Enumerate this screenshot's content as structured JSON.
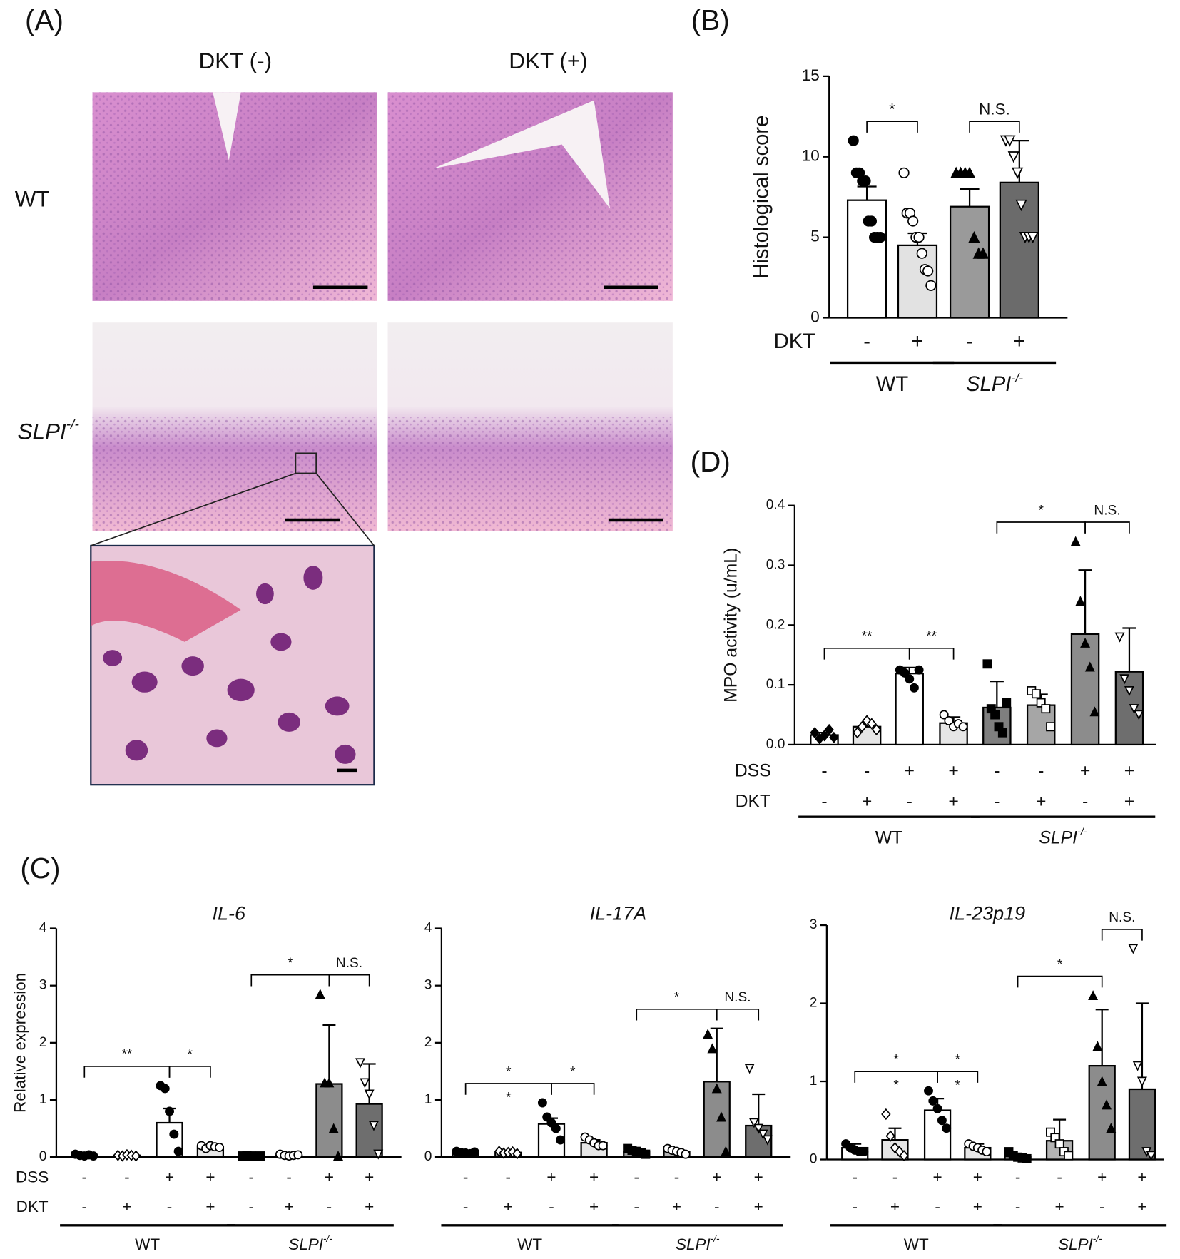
{
  "panel_a": {
    "label": "(A)",
    "columns": [
      "DKT (-)",
      "DKT (+)"
    ],
    "rows": [
      {
        "name": "WT"
      },
      {
        "name": "SLPI",
        "superscript": "-/-"
      }
    ]
  },
  "panel_c": {
    "label": "(C)"
  },
  "chart_data": [
    {
      "type": "bar",
      "panel_label": "(B)",
      "ylabel": "Histological score",
      "ylim": [
        0,
        15
      ],
      "yticks": [
        0,
        5,
        10,
        15
      ],
      "values": [
        7.3,
        4.5,
        6.9,
        8.4
      ],
      "errors": [
        0.85,
        0.75,
        1.1,
        2.6
      ],
      "colors": [
        "#ffffff",
        "#e2e2e2",
        "#9a9a9a",
        "#6b6b6b"
      ],
      "markers": [
        "circle-filled",
        "circle-open",
        "triangle-filled",
        "triangle-down-open"
      ],
      "points": [
        [
          11,
          9,
          9,
          8.5,
          8.5,
          6,
          6,
          5,
          5,
          5
        ],
        [
          9,
          6.5,
          6.5,
          6,
          5,
          5,
          4,
          3,
          2.9,
          2
        ],
        [
          9,
          9,
          9,
          9,
          5,
          4,
          4
        ],
        [
          11,
          11,
          10,
          9,
          7,
          5,
          5,
          5
        ]
      ],
      "conditions": [
        {
          "name": "DKT",
          "signs": [
            "-",
            "+",
            "-",
            "+"
          ]
        }
      ],
      "groups": [
        {
          "name": "WT"
        },
        {
          "name": "SLPI",
          "superscript": "-/-"
        }
      ],
      "significance": [
        {
          "from": 0,
          "to": 1,
          "label": "*"
        },
        {
          "from": 2,
          "to": 3,
          "label": "N.S."
        }
      ]
    },
    {
      "type": "bar",
      "panel_label": "(D)",
      "ylabel": "MPO activity (u/mL)",
      "ylim": [
        0,
        0.4
      ],
      "yticks": [
        {
          "value": 0,
          "label": "0.0"
        },
        0.1,
        0.2,
        0.3,
        0.4
      ],
      "values": [
        0.016,
        0.03,
        0.119,
        0.036,
        0.062,
        0.066,
        0.185,
        0.122
      ],
      "errors": [
        0.004,
        0.006,
        0.01,
        0.01,
        0.044,
        0.018,
        0.107,
        0.073
      ],
      "colors": [
        "#ffffff",
        "#e6e6e6",
        "#ffffff",
        "#e6e6e6",
        "#7f7f7f",
        "#a6a6a6",
        "#8c8c8c",
        "#6e6e6e"
      ],
      "markers": [
        "diamond-filled",
        "diamond-open",
        "circle-filled",
        "circle-open",
        "square-filled",
        "square-open",
        "triangle-filled",
        "triangle-down-open"
      ],
      "points": [
        [
          0.02,
          0.01,
          0.015,
          0.025,
          0.012
        ],
        [
          0.02,
          0.03,
          0.04,
          0.035,
          0.025
        ],
        [
          0.125,
          0.12,
          0.11,
          0.095,
          0.125
        ],
        [
          0.05,
          0.04,
          0.03,
          0.035,
          0.03
        ],
        [
          0.135,
          0.06,
          0.05,
          0.03,
          0.02,
          0.07
        ],
        [
          0.09,
          0.085,
          0.07,
          0.06,
          0.03
        ],
        [
          0.34,
          0.24,
          0.17,
          0.13,
          0.055
        ],
        [
          0.18,
          0.11,
          0.09,
          0.06,
          0.05
        ]
      ],
      "conditions": [
        {
          "name": "DSS",
          "signs": [
            "-",
            "-",
            "+",
            "+",
            "-",
            "-",
            "+",
            "+"
          ]
        },
        {
          "name": "DKT",
          "signs": [
            "-",
            "+",
            "-",
            "+",
            "-",
            "+",
            "-",
            "+"
          ]
        }
      ],
      "groups": [
        {
          "name": "WT"
        },
        {
          "name": "SLPI",
          "superscript": "-/-"
        }
      ],
      "significance": [
        {
          "from": 0,
          "to": 2,
          "label": "**"
        },
        {
          "from": 2,
          "to": 3,
          "label": "**"
        },
        {
          "from": 4,
          "to": 6,
          "label": "*"
        },
        {
          "from": 6,
          "to": 7,
          "label": "N.S."
        }
      ]
    },
    {
      "type": "bar",
      "title": "IL-6",
      "ylabel": "Relative expression",
      "ylim": [
        0,
        4
      ],
      "yticks": [
        0,
        1,
        2,
        3,
        4
      ],
      "values": [
        0.03,
        0.03,
        0.6,
        0.18,
        0.02,
        0.03,
        1.28,
        0.93
      ],
      "errors": [
        0.01,
        0.01,
        0.25,
        0.03,
        0.01,
        0.01,
        1.03,
        0.7
      ],
      "colors": [
        "#ffffff",
        "#e6e6e6",
        "#ffffff",
        "#e6e6e6",
        "#9a9a9a",
        "#b3b3b3",
        "#8c8c8c",
        "#6e6e6e"
      ],
      "markers": [
        "circle-filled",
        "diamond-open",
        "circle-filled",
        "circle-open",
        "square-filled",
        "circle-open",
        "triangle-filled",
        "triangle-down-open"
      ],
      "points": [
        [
          0.05,
          0.03,
          0.02,
          0.04,
          0.02
        ],
        [
          0.03,
          0.02,
          0.04,
          0.03,
          0.02
        ],
        [
          1.25,
          1.2,
          0.8,
          0.4,
          0.1
        ],
        [
          0.2,
          0.15,
          0.2,
          0.18,
          0.17
        ],
        [
          0.02,
          0.03,
          0.02,
          0.01,
          0.02
        ],
        [
          0.05,
          0.03,
          0.02,
          0.03,
          0.04
        ],
        [
          2.85,
          1.3,
          1.3,
          0.5,
          0.02
        ],
        [
          1.65,
          1.3,
          1.1,
          0.55,
          0.05
        ]
      ],
      "conditions": [
        {
          "name": "DSS",
          "signs": [
            "-",
            "-",
            "+",
            "+",
            "-",
            "-",
            "+",
            "+"
          ]
        },
        {
          "name": "DKT",
          "signs": [
            "-",
            "+",
            "-",
            "+",
            "-",
            "+",
            "-",
            "+"
          ]
        }
      ],
      "groups": [
        {
          "name": "WT"
        },
        {
          "name": "SLPI",
          "superscript": "-/-"
        }
      ],
      "significance": [
        {
          "from": 0,
          "to": 2,
          "label": "**"
        },
        {
          "from": 2,
          "to": 3,
          "label": "*"
        },
        {
          "from": 4,
          "to": 6,
          "label": "*"
        },
        {
          "from": 6,
          "to": 7,
          "label": "N.S."
        }
      ]
    },
    {
      "type": "bar",
      "title": "IL-17A",
      "ylim": [
        0,
        4
      ],
      "yticks": [
        0,
        1,
        2,
        3,
        4
      ],
      "values": [
        0.08,
        0.08,
        0.58,
        0.25,
        0.1,
        0.1,
        1.32,
        0.55
      ],
      "errors": [
        0.02,
        0.02,
        0.1,
        0.05,
        0.03,
        0.03,
        0.93,
        0.55
      ],
      "colors": [
        "#ffffff",
        "#e6e6e6",
        "#ffffff",
        "#e6e6e6",
        "#9a9a9a",
        "#b3b3b3",
        "#8c8c8c",
        "#6e6e6e"
      ],
      "markers": [
        "circle-filled",
        "diamond-open",
        "circle-filled",
        "circle-open",
        "square-filled",
        "circle-open",
        "triangle-filled",
        "triangle-down-open"
      ],
      "points": [
        [
          0.1,
          0.08,
          0.07,
          0.06,
          0.09
        ],
        [
          0.1,
          0.07,
          0.08,
          0.09,
          0.06
        ],
        [
          0.95,
          0.7,
          0.6,
          0.5,
          0.3
        ],
        [
          0.35,
          0.3,
          0.25,
          0.2,
          0.2
        ],
        [
          0.15,
          0.12,
          0.1,
          0.08,
          0.05
        ],
        [
          0.15,
          0.12,
          0.1,
          0.08,
          0.05
        ],
        [
          2.15,
          1.9,
          1.2,
          0.7,
          0.1
        ],
        [
          1.55,
          0.6,
          0.5,
          0.4,
          0.3
        ]
      ],
      "conditions": [
        {
          "name": "DSS",
          "signs": [
            "-",
            "-",
            "+",
            "+",
            "-",
            "-",
            "+",
            "+"
          ]
        },
        {
          "name": "DKT",
          "signs": [
            "-",
            "+",
            "-",
            "+",
            "-",
            "+",
            "-",
            "+"
          ]
        }
      ],
      "groups": [
        {
          "name": "WT"
        },
        {
          "name": "SLPI",
          "superscript": "-/-"
        }
      ],
      "significance": [
        {
          "from": 0,
          "to": 2,
          "label": "*",
          "sublabel": "*"
        },
        {
          "from": 2,
          "to": 3,
          "label": "*"
        },
        {
          "from": 4,
          "to": 6,
          "label": "*"
        },
        {
          "from": 6,
          "to": 7,
          "label": "N.S."
        }
      ]
    },
    {
      "type": "bar",
      "title": "IL-23p19",
      "ylim": [
        0,
        3
      ],
      "yticks": [
        0,
        1,
        2,
        3
      ],
      "values": [
        0.15,
        0.25,
        0.63,
        0.15,
        0.04,
        0.24,
        1.2,
        0.9
      ],
      "errors": [
        0.05,
        0.15,
        0.15,
        0.05,
        0.03,
        0.27,
        0.72,
        1.1
      ],
      "colors": [
        "#ffffff",
        "#e6e6e6",
        "#ffffff",
        "#e6e6e6",
        "#9a9a9a",
        "#b3b3b3",
        "#8c8c8c",
        "#6e6e6e"
      ],
      "markers": [
        "circle-filled",
        "diamond-open",
        "circle-filled",
        "circle-open",
        "square-filled",
        "square-open",
        "triangle-filled",
        "triangle-down-open"
      ],
      "points": [
        [
          0.2,
          0.15,
          0.12,
          0.1,
          0.1
        ],
        [
          0.58,
          0.3,
          0.15,
          0.1,
          0.05
        ],
        [
          0.88,
          0.75,
          0.65,
          0.5,
          0.4
        ],
        [
          0.2,
          0.17,
          0.15,
          0.12,
          0.1
        ],
        [
          0.1,
          0.05,
          0.03,
          0.02,
          0.01
        ],
        [
          0.35,
          0.28,
          0.2,
          0.1,
          0.05
        ],
        [
          2.1,
          1.45,
          1.0,
          0.7,
          0.4
        ],
        [
          2.7,
          1.2,
          1.0,
          0.1,
          0.05
        ]
      ],
      "conditions": [
        {
          "name": "DSS",
          "signs": [
            "-",
            "-",
            "+",
            "+",
            "-",
            "-",
            "+",
            "+"
          ]
        },
        {
          "name": "DKT",
          "signs": [
            "-",
            "+",
            "-",
            "+",
            "-",
            "+",
            "-",
            "+"
          ]
        }
      ],
      "groups": [
        {
          "name": "WT"
        },
        {
          "name": "SLPI",
          "superscript": "-/-"
        }
      ],
      "significance": [
        {
          "from": 0,
          "to": 2,
          "label": "*",
          "sublabel": "*"
        },
        {
          "from": 2,
          "to": 3,
          "label": "*",
          "sublabel": "*"
        },
        {
          "from": 4,
          "to": 6,
          "label": "*"
        },
        {
          "from": 6,
          "to": 7,
          "label": "N.S."
        }
      ]
    }
  ]
}
